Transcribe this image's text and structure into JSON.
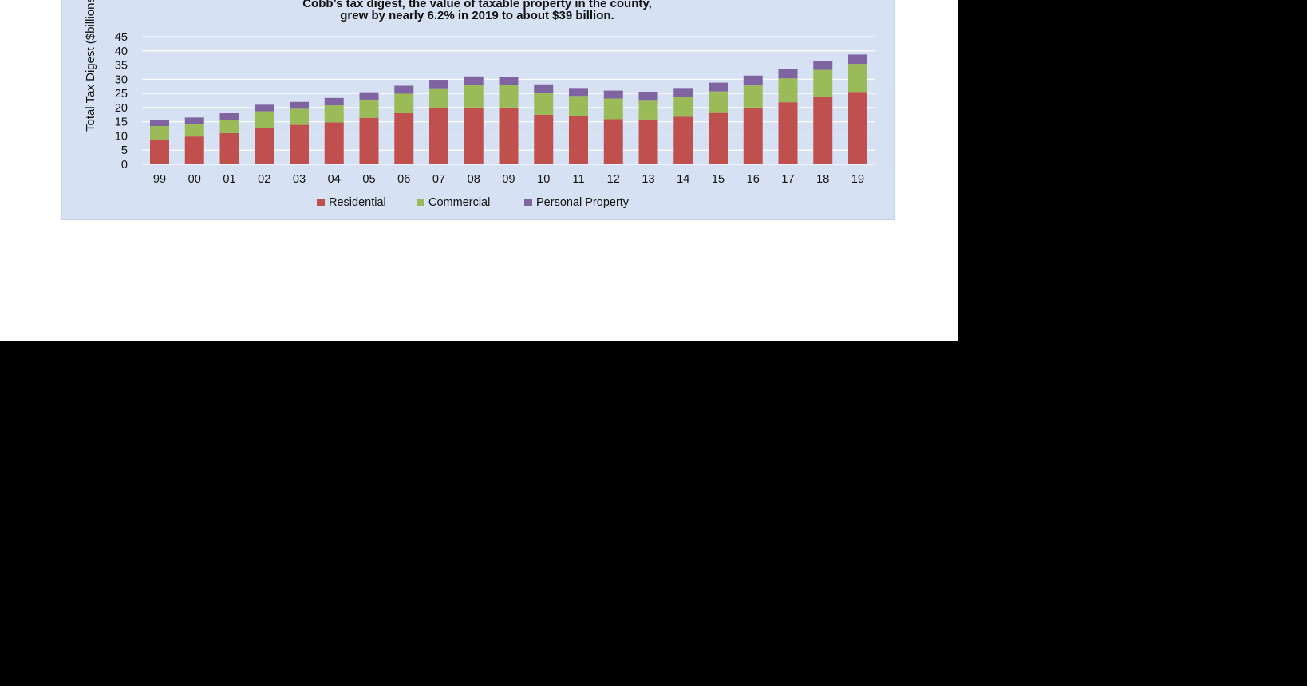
{
  "chart_data": {
    "type": "bar",
    "stacked": true,
    "title": [
      "Cobb’s tax digest, the value of taxable property in the county,",
      "grew by nearly 6.2% in 2019 to about $39 billion."
    ],
    "xlabel": "",
    "ylabel": "Total Tax Digest ($billions)",
    "ylim": [
      0,
      45
    ],
    "yticks": [
      0,
      5,
      10,
      15,
      20,
      25,
      30,
      35,
      40,
      45
    ],
    "grid": true,
    "legend_position": "bottom",
    "categories": [
      "99",
      "00",
      "01",
      "02",
      "03",
      "04",
      "05",
      "06",
      "07",
      "08",
      "09",
      "10",
      "11",
      "12",
      "13",
      "14",
      "15",
      "16",
      "17",
      "18",
      "19"
    ],
    "series": [
      {
        "name": "Residential",
        "color": "#c0504d",
        "values": [
          8.8,
          9.8,
          11.0,
          12.9,
          13.9,
          14.8,
          16.4,
          18.0,
          19.7,
          20.0,
          20.0,
          17.5,
          16.9,
          15.9,
          15.8,
          16.8,
          18.1,
          20.0,
          21.9,
          23.7,
          25.5
        ]
      },
      {
        "name": "Commercial",
        "color": "#9bbb59",
        "values": [
          4.7,
          4.5,
          4.6,
          5.8,
          5.7,
          6.0,
          6.4,
          6.9,
          7.1,
          8.0,
          7.9,
          7.7,
          7.2,
          7.3,
          6.9,
          7.1,
          7.6,
          7.8,
          8.4,
          9.6,
          9.9
        ]
      },
      {
        "name": "Personal Property",
        "color": "#8064a2",
        "values": [
          2.0,
          2.2,
          2.4,
          2.3,
          2.4,
          2.6,
          2.6,
          2.8,
          3.0,
          3.0,
          3.0,
          3.0,
          2.8,
          2.8,
          2.9,
          3.0,
          3.1,
          3.5,
          3.2,
          3.2,
          3.3
        ]
      }
    ]
  }
}
